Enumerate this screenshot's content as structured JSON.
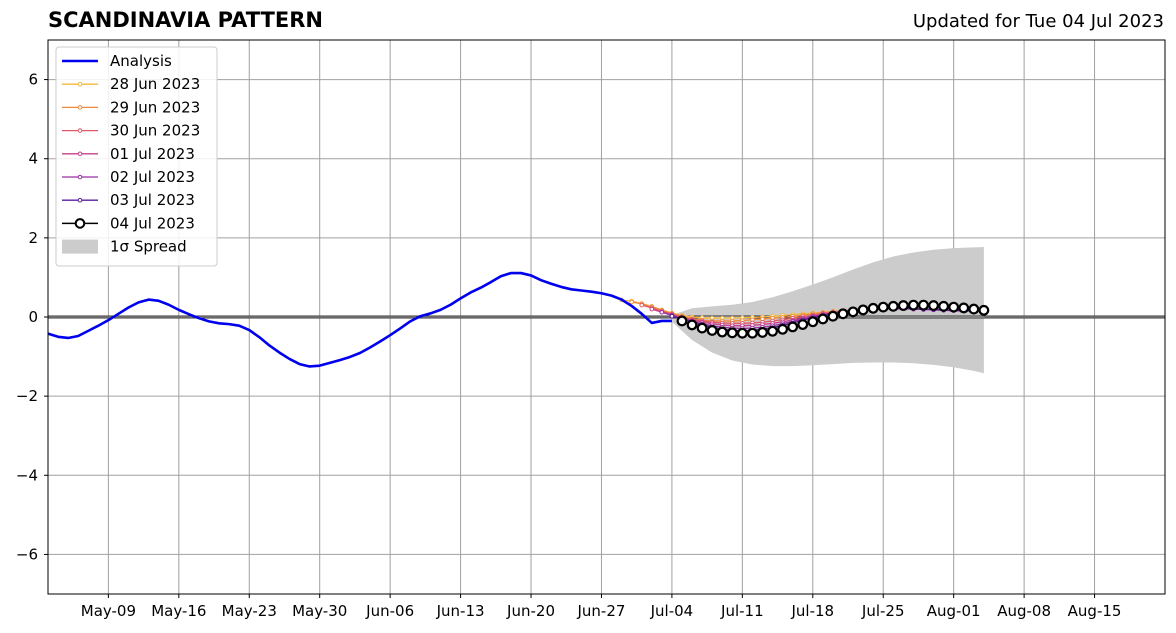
{
  "header": {
    "title": "SCANDINAVIA PATTERN",
    "updated": "Updated for Tue 04 Jul 2023"
  },
  "chart_data": {
    "type": "line",
    "title": "SCANDINAVIA PATTERN",
    "xlabel": "",
    "ylabel": "",
    "xlim": [
      "2023-05-03",
      "2023-08-22"
    ],
    "ylim": [
      -7,
      7
    ],
    "grid": true,
    "legend_position": "top-left",
    "xticks": [
      "May-09",
      "May-16",
      "May-23",
      "May-30",
      "Jun-06",
      "Jun-13",
      "Jun-20",
      "Jun-27",
      "Jul-04",
      "Jul-11",
      "Jul-18",
      "Jul-25",
      "Aug-01",
      "Aug-08",
      "Aug-15"
    ],
    "xtick_dates": [
      "2023-05-09",
      "2023-05-16",
      "2023-05-23",
      "2023-05-30",
      "2023-06-06",
      "2023-06-13",
      "2023-06-20",
      "2023-06-27",
      "2023-07-04",
      "2023-07-11",
      "2023-07-18",
      "2023-07-25",
      "2023-08-01",
      "2023-08-08",
      "2023-08-15"
    ],
    "yticks": [
      -6,
      -4,
      -2,
      0,
      2,
      4,
      6
    ],
    "ytick_labels": [
      "−6",
      "−4",
      "−2",
      "0",
      "2",
      "4",
      "6"
    ],
    "analysis": {
      "name": "Analysis",
      "color": "#0000ee",
      "x": [
        "2023-05-03",
        "2023-05-04",
        "2023-05-05",
        "2023-05-06",
        "2023-05-07",
        "2023-05-08",
        "2023-05-09",
        "2023-05-10",
        "2023-05-11",
        "2023-05-12",
        "2023-05-13",
        "2023-05-14",
        "2023-05-15",
        "2023-05-16",
        "2023-05-17",
        "2023-05-18",
        "2023-05-19",
        "2023-05-20",
        "2023-05-21",
        "2023-05-22",
        "2023-05-23",
        "2023-05-24",
        "2023-05-25",
        "2023-05-26",
        "2023-05-27",
        "2023-05-28",
        "2023-05-29",
        "2023-05-30",
        "2023-05-31",
        "2023-06-01",
        "2023-06-02",
        "2023-06-03",
        "2023-06-04",
        "2023-06-05",
        "2023-06-06",
        "2023-06-07",
        "2023-06-08",
        "2023-06-09",
        "2023-06-10",
        "2023-06-11",
        "2023-06-12",
        "2023-06-13",
        "2023-06-14",
        "2023-06-15",
        "2023-06-16",
        "2023-06-17",
        "2023-06-18",
        "2023-06-19",
        "2023-06-20",
        "2023-06-21",
        "2023-06-22",
        "2023-06-23",
        "2023-06-24",
        "2023-06-25",
        "2023-06-26",
        "2023-06-27",
        "2023-06-28",
        "2023-06-29",
        "2023-06-30",
        "2023-07-01",
        "2023-07-02",
        "2023-07-03",
        "2023-07-04"
      ],
      "y": [
        -0.42,
        -0.5,
        -0.53,
        -0.48,
        -0.35,
        -0.22,
        -0.08,
        0.08,
        0.24,
        0.37,
        0.44,
        0.41,
        0.31,
        0.18,
        0.07,
        -0.03,
        -0.11,
        -0.16,
        -0.18,
        -0.22,
        -0.33,
        -0.51,
        -0.72,
        -0.9,
        -1.06,
        -1.19,
        -1.25,
        -1.23,
        -1.16,
        -1.09,
        -1.01,
        -0.91,
        -0.77,
        -0.62,
        -0.46,
        -0.29,
        -0.11,
        0.02,
        0.09,
        0.18,
        0.31,
        0.47,
        0.62,
        0.74,
        0.88,
        1.03,
        1.11,
        1.11,
        1.05,
        0.93,
        0.84,
        0.76,
        0.7,
        0.67,
        0.64,
        0.6,
        0.54,
        0.44,
        0.28,
        0.08,
        -0.15,
        -0.1,
        -0.1
      ]
    },
    "series": [
      {
        "name": "28 Jun 2023",
        "color": "#f5b73b",
        "x": [
          "2023-06-29",
          "2023-06-30",
          "2023-07-01",
          "2023-07-02",
          "2023-07-03",
          "2023-07-04",
          "2023-07-05",
          "2023-07-06",
          "2023-07-07",
          "2023-07-08",
          "2023-07-09",
          "2023-07-10",
          "2023-07-11",
          "2023-07-12",
          "2023-07-13",
          "2023-07-14",
          "2023-07-15",
          "2023-07-16",
          "2023-07-17",
          "2023-07-18",
          "2023-07-19",
          "2023-07-20",
          "2023-07-21",
          "2023-07-22",
          "2023-07-23",
          "2023-07-24",
          "2023-07-25",
          "2023-07-26",
          "2023-07-27",
          "2023-07-28",
          "2023-07-29"
        ],
        "y": [
          0.43,
          0.4,
          0.34,
          0.27,
          0.18,
          0.1,
          0.04,
          0.0,
          -0.02,
          -0.03,
          -0.03,
          -0.03,
          -0.02,
          -0.01,
          0.0,
          0.02,
          0.04,
          0.06,
          0.08,
          0.1,
          0.12,
          0.14,
          0.16,
          0.18,
          0.2,
          0.21,
          0.22,
          0.22,
          0.22,
          0.21,
          0.2
        ]
      },
      {
        "name": "29 Jun 2023",
        "color": "#f08a3e",
        "x": [
          "2023-06-30",
          "2023-07-01",
          "2023-07-02",
          "2023-07-03",
          "2023-07-04",
          "2023-07-05",
          "2023-07-06",
          "2023-07-07",
          "2023-07-08",
          "2023-07-09",
          "2023-07-10",
          "2023-07-11",
          "2023-07-12",
          "2023-07-13",
          "2023-07-14",
          "2023-07-15",
          "2023-07-16",
          "2023-07-17",
          "2023-07-18",
          "2023-07-19",
          "2023-07-20",
          "2023-07-21",
          "2023-07-22",
          "2023-07-23",
          "2023-07-24",
          "2023-07-25",
          "2023-07-26",
          "2023-07-27",
          "2023-07-28",
          "2023-07-29",
          "2023-07-30"
        ],
        "y": [
          0.38,
          0.33,
          0.26,
          0.17,
          0.09,
          0.02,
          -0.04,
          -0.08,
          -0.1,
          -0.1,
          -0.1,
          -0.09,
          -0.07,
          -0.05,
          -0.03,
          -0.01,
          0.02,
          0.05,
          0.08,
          0.11,
          0.14,
          0.16,
          0.18,
          0.2,
          0.21,
          0.22,
          0.22,
          0.22,
          0.21,
          0.2,
          0.19
        ]
      },
      {
        "name": "30 Jun 2023",
        "color": "#e05a6a",
        "x": [
          "2023-07-01",
          "2023-07-02",
          "2023-07-03",
          "2023-07-04",
          "2023-07-05",
          "2023-07-06",
          "2023-07-07",
          "2023-07-08",
          "2023-07-09",
          "2023-07-10",
          "2023-07-11",
          "2023-07-12",
          "2023-07-13",
          "2023-07-14",
          "2023-07-15",
          "2023-07-16",
          "2023-07-17",
          "2023-07-18",
          "2023-07-19",
          "2023-07-20",
          "2023-07-21",
          "2023-07-22",
          "2023-07-23",
          "2023-07-24",
          "2023-07-25",
          "2023-07-26",
          "2023-07-27",
          "2023-07-28",
          "2023-07-29",
          "2023-07-30",
          "2023-07-31"
        ],
        "y": [
          0.3,
          0.23,
          0.15,
          0.07,
          0.0,
          -0.06,
          -0.1,
          -0.13,
          -0.15,
          -0.16,
          -0.16,
          -0.15,
          -0.13,
          -0.1,
          -0.07,
          -0.03,
          0.01,
          0.05,
          0.09,
          0.12,
          0.15,
          0.18,
          0.2,
          0.21,
          0.22,
          0.22,
          0.22,
          0.21,
          0.2,
          0.19,
          0.18
        ]
      },
      {
        "name": "01 Jul 2023",
        "color": "#c73f8c",
        "x": [
          "2023-07-02",
          "2023-07-03",
          "2023-07-04",
          "2023-07-05",
          "2023-07-06",
          "2023-07-07",
          "2023-07-08",
          "2023-07-09",
          "2023-07-10",
          "2023-07-11",
          "2023-07-12",
          "2023-07-13",
          "2023-07-14",
          "2023-07-15",
          "2023-07-16",
          "2023-07-17",
          "2023-07-18",
          "2023-07-19",
          "2023-07-20",
          "2023-07-21",
          "2023-07-22",
          "2023-07-23",
          "2023-07-24",
          "2023-07-25",
          "2023-07-26",
          "2023-07-27",
          "2023-07-28",
          "2023-07-29",
          "2023-07-30",
          "2023-07-31",
          "2023-08-01"
        ],
        "y": [
          0.2,
          0.12,
          0.05,
          -0.02,
          -0.08,
          -0.13,
          -0.17,
          -0.2,
          -0.22,
          -0.22,
          -0.21,
          -0.19,
          -0.16,
          -0.12,
          -0.08,
          -0.03,
          0.02,
          0.06,
          0.1,
          0.13,
          0.16,
          0.18,
          0.2,
          0.21,
          0.21,
          0.21,
          0.2,
          0.19,
          0.18,
          0.17,
          0.16
        ]
      },
      {
        "name": "02 Jul 2023",
        "color": "#9a2fa3",
        "x": [
          "2023-07-03",
          "2023-07-04",
          "2023-07-05",
          "2023-07-06",
          "2023-07-07",
          "2023-07-08",
          "2023-07-09",
          "2023-07-10",
          "2023-07-11",
          "2023-07-12",
          "2023-07-13",
          "2023-07-14",
          "2023-07-15",
          "2023-07-16",
          "2023-07-17",
          "2023-07-18",
          "2023-07-19",
          "2023-07-20",
          "2023-07-21",
          "2023-07-22",
          "2023-07-23",
          "2023-07-24",
          "2023-07-25",
          "2023-07-26",
          "2023-07-27",
          "2023-07-28",
          "2023-07-29",
          "2023-07-30",
          "2023-07-31",
          "2023-08-01",
          "2023-08-02"
        ],
        "y": [
          0.12,
          0.04,
          -0.04,
          -0.11,
          -0.17,
          -0.22,
          -0.26,
          -0.28,
          -0.29,
          -0.28,
          -0.26,
          -0.22,
          -0.17,
          -0.11,
          -0.05,
          0.01,
          0.06,
          0.1,
          0.14,
          0.17,
          0.19,
          0.2,
          0.21,
          0.21,
          0.21,
          0.2,
          0.19,
          0.18,
          0.17,
          0.16,
          0.15
        ]
      },
      {
        "name": "03 Jul 2023",
        "color": "#5a1ba0",
        "x": [
          "2023-07-04",
          "2023-07-05",
          "2023-07-06",
          "2023-07-07",
          "2023-07-08",
          "2023-07-09",
          "2023-07-10",
          "2023-07-11",
          "2023-07-12",
          "2023-07-13",
          "2023-07-14",
          "2023-07-15",
          "2023-07-16",
          "2023-07-17",
          "2023-07-18",
          "2023-07-19",
          "2023-07-20",
          "2023-07-21",
          "2023-07-22",
          "2023-07-23",
          "2023-07-24",
          "2023-07-25",
          "2023-07-26",
          "2023-07-27",
          "2023-07-28",
          "2023-07-29",
          "2023-07-30",
          "2023-07-31",
          "2023-08-01",
          "2023-08-02",
          "2023-08-03"
        ],
        "y": [
          0.02,
          -0.05,
          -0.13,
          -0.2,
          -0.26,
          -0.31,
          -0.34,
          -0.35,
          -0.34,
          -0.31,
          -0.27,
          -0.21,
          -0.15,
          -0.08,
          -0.02,
          0.04,
          0.09,
          0.13,
          0.16,
          0.19,
          0.21,
          0.22,
          0.22,
          0.22,
          0.21,
          0.2,
          0.19,
          0.18,
          0.17,
          0.16,
          0.15
        ]
      },
      {
        "name": "04 Jul 2023",
        "color": "#000000",
        "marker": "open-circle",
        "x": [
          "2023-07-05",
          "2023-07-06",
          "2023-07-07",
          "2023-07-08",
          "2023-07-09",
          "2023-07-10",
          "2023-07-11",
          "2023-07-12",
          "2023-07-13",
          "2023-07-14",
          "2023-07-15",
          "2023-07-16",
          "2023-07-17",
          "2023-07-18",
          "2023-07-19",
          "2023-07-20",
          "2023-07-21",
          "2023-07-22",
          "2023-07-23",
          "2023-07-24",
          "2023-07-25",
          "2023-07-26",
          "2023-07-27",
          "2023-07-28",
          "2023-07-29",
          "2023-07-30",
          "2023-07-31",
          "2023-08-01",
          "2023-08-02",
          "2023-08-03",
          "2023-08-04"
        ],
        "y": [
          -0.1,
          -0.2,
          -0.28,
          -0.34,
          -0.38,
          -0.4,
          -0.41,
          -0.41,
          -0.39,
          -0.36,
          -0.31,
          -0.25,
          -0.19,
          -0.12,
          -0.05,
          0.02,
          0.08,
          0.13,
          0.18,
          0.22,
          0.25,
          0.27,
          0.29,
          0.3,
          0.3,
          0.29,
          0.27,
          0.25,
          0.23,
          0.2,
          0.17
        ]
      }
    ],
    "spread": {
      "name": "1σ Spread",
      "color": "#cccccc",
      "x": [
        "2023-07-04",
        "2023-07-06",
        "2023-07-08",
        "2023-07-10",
        "2023-07-12",
        "2023-07-14",
        "2023-07-16",
        "2023-07-18",
        "2023-07-20",
        "2023-07-22",
        "2023-07-24",
        "2023-07-26",
        "2023-07-28",
        "2023-07-30",
        "2023-08-01",
        "2023-08-03",
        "2023-08-04"
      ],
      "upper": [
        0.05,
        0.22,
        0.27,
        0.31,
        0.38,
        0.5,
        0.65,
        0.82,
        1.0,
        1.2,
        1.38,
        1.53,
        1.63,
        1.7,
        1.74,
        1.76,
        1.77
      ],
      "lower": [
        -0.12,
        -0.58,
        -0.9,
        -1.1,
        -1.2,
        -1.24,
        -1.24,
        -1.22,
        -1.19,
        -1.16,
        -1.15,
        -1.15,
        -1.17,
        -1.21,
        -1.27,
        -1.36,
        -1.42
      ]
    }
  }
}
